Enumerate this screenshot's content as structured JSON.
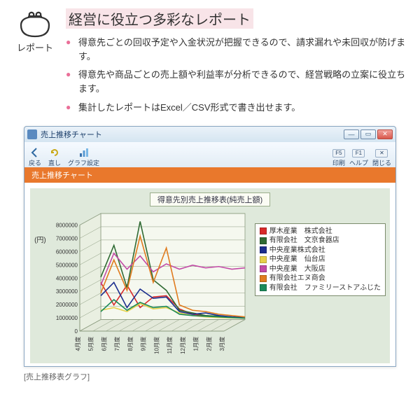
{
  "accent_color": "#ea6f98",
  "icon_label": "レポート",
  "title": "経営に役立つ多彩なレポート",
  "bullets": [
    "得意先ごとの回収予定や入金状況が把握できるので、請求漏れや未回収が防げます。",
    "得意先や商品ごとの売上額や利益率が分析できるので、経営戦略の立案に役立ちます。",
    "集計したレポートはExcel／CSV形式で書き出せます。"
  ],
  "window": {
    "title": "売上推移チャート",
    "toolbar": {
      "back": "戻る",
      "refresh": "直し",
      "settings": "グラフ設定",
      "print": "印刷",
      "help": "ヘルプ",
      "close": "閉じる",
      "key_f5": "F5",
      "key_f1": "F1"
    },
    "tab_label": "売上推移チャート",
    "tab_color": "#e9782c"
  },
  "chart": {
    "title": "得意先別売上推移表(純売上額)",
    "type": "line",
    "y_unit": "(円)",
    "background_color": "#dfe9db",
    "grid_background": "#f5f8ef",
    "grid_color": "#8a9a7e",
    "cube_depth": 30,
    "ylim": [
      0,
      8000000
    ],
    "ytick_step": 1000000,
    "yticks": [
      "0",
      "1000000",
      "2000000",
      "3000000",
      "4000000",
      "5000000",
      "6000000",
      "7000000",
      "8000000"
    ],
    "x_categories": [
      "4月度",
      "5月度",
      "6月度",
      "7月度",
      "8月度",
      "9月度",
      "10月度",
      "11月度",
      "12月度",
      "1月度",
      "2月度",
      "3月度"
    ],
    "series": [
      {
        "name": "厚木産業　株式会社",
        "color": "#d82a2a",
        "values": [
          2800000,
          1100000,
          2600000,
          900000,
          1700000,
          1800000,
          800000,
          400000,
          300000,
          200000,
          150000,
          100000
        ]
      },
      {
        "name": "有限会社　文京食器店",
        "color": "#2f6a33",
        "values": [
          3200000,
          5600000,
          2400000,
          7400000,
          3000000,
          2200000,
          700000,
          500000,
          300000,
          250000,
          200000,
          150000
        ]
      },
      {
        "name": "中央産業株式会社",
        "color": "#1b2e8e",
        "values": [
          1800000,
          2800000,
          900000,
          2300000,
          1600000,
          1700000,
          600000,
          400000,
          500000,
          300000,
          200000,
          150000
        ]
      },
      {
        "name": "中央産業　仙台店",
        "color": "#e7d14a",
        "values": [
          700000,
          900000,
          600000,
          1200000,
          800000,
          900000,
          500000,
          300000,
          200000,
          150000,
          120000,
          100000
        ]
      },
      {
        "name": "中央産業　大阪店",
        "color": "#c24aa6",
        "values": [
          2600000,
          5000000,
          3800000,
          4800000,
          3600000,
          4200000,
          3800000,
          4100000,
          3900000,
          4000000,
          3800000,
          3900000
        ]
      },
      {
        "name": "有限会社エヌ商会",
        "color": "#e07b1e",
        "values": [
          2000000,
          4500000,
          2200000,
          6300000,
          2800000,
          5400000,
          1100000,
          700000,
          600000,
          400000,
          300000,
          200000
        ]
      },
      {
        "name": "有限会社　ファミリーストアふじた",
        "color": "#1c8a5a",
        "values": [
          600000,
          1500000,
          700000,
          1300000,
          900000,
          1000000,
          400000,
          300000,
          250000,
          200000,
          150000,
          100000
        ]
      }
    ]
  },
  "caption": "[売上推移表グラフ]"
}
